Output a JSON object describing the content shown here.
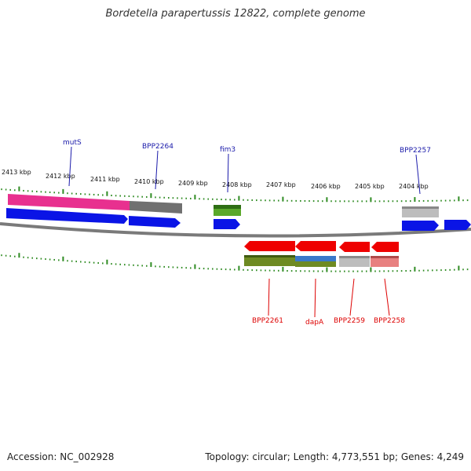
{
  "title": "Bordetella parapertussis 12822, complete genome",
  "footer": {
    "accession": "Accession: NC_002928",
    "summary": "Topology: circular; Length: 4,773,551 bp; Genes: 4,249"
  },
  "colors": {
    "backbone": "#777777",
    "tick": "#2e8b22",
    "label_top": "#1a1aaa",
    "label_bottom": "#dd0000",
    "cds_forward": "#0a14e6",
    "cds_reverse": "#ee0000"
  },
  "kbp_labels": [
    "2413 kbp",
    "2412 kbp",
    "2411 kbp",
    "2410 kbp",
    "2409 kbp",
    "2408 kbp",
    "2407 kbp",
    "2406 kbp",
    "2405 kbp",
    "2404 kbp"
  ],
  "gene_labels_top": [
    "mutS",
    "BPP2264",
    "fim3",
    "BPP2257"
  ],
  "gene_labels_bottom": [
    "BPP2261",
    "dapA",
    "BPP2259",
    "BPP2258"
  ]
}
